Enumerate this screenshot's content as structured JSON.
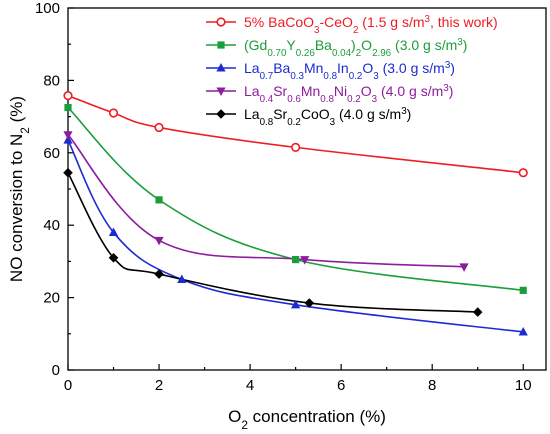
{
  "chart_data": {
    "type": "line",
    "xlabel": {
      "main": "O",
      "sub": "2",
      "rest": " concentration (%)"
    },
    "ylabel": {
      "main": "NO conversion to N",
      "sub": "2",
      "rest": " (%)"
    },
    "xlim": [
      0,
      10.5
    ],
    "ylim": [
      0,
      100
    ],
    "xticks": [
      "0",
      "2",
      "4",
      "6",
      "8",
      "10"
    ],
    "yticks": [
      "0",
      "20",
      "40",
      "60",
      "80",
      "100"
    ],
    "grid": false,
    "legend_position": "top-right",
    "series": [
      {
        "name": "5% BaCoO3-CeO2 (1.5 g s/m3, this work)",
        "legend": [
          [
            "5% BaCoO",
            "n"
          ],
          [
            "3",
            "sub"
          ],
          [
            "-CeO",
            "n"
          ],
          [
            "2",
            "sub"
          ],
          [
            " (1.5 g s/m",
            "n"
          ],
          [
            "3",
            "sup"
          ],
          [
            ", this work)",
            "n"
          ]
        ],
        "color": "#ee1c24",
        "marker": "circle-open",
        "x": [
          0,
          1,
          2,
          5,
          10
        ],
        "y": [
          75.8,
          71,
          67,
          61.5,
          54.5
        ]
      },
      {
        "name": "(Gd0.70Y0.26Ba0.04)2O2.96 (3.0 g s/m3)",
        "legend": [
          [
            "(Gd",
            "n"
          ],
          [
            "0.70",
            "sub"
          ],
          [
            "Y",
            "n"
          ],
          [
            "0.26",
            "sub"
          ],
          [
            "Ba",
            "n"
          ],
          [
            "0.04",
            "sub"
          ],
          [
            ")",
            "n"
          ],
          [
            "2",
            "sub"
          ],
          [
            "O",
            "n"
          ],
          [
            "2.96",
            "sub"
          ],
          [
            " (3.0 g s/m",
            "n"
          ],
          [
            "3",
            "sup"
          ],
          [
            ")",
            "n"
          ]
        ],
        "color": "#1b9e3a",
        "marker": "square",
        "x": [
          0,
          2,
          5,
          10
        ],
        "y": [
          72.5,
          47,
          30.5,
          22
        ]
      },
      {
        "name": "La0.7Ba0.3Mn0.8In0.2O3 (3.0 g s/m3)",
        "legend": [
          [
            "La",
            "n"
          ],
          [
            "0.7",
            "sub"
          ],
          [
            "Ba",
            "n"
          ],
          [
            "0.3",
            "sub"
          ],
          [
            "Mn",
            "n"
          ],
          [
            "0.8",
            "sub"
          ],
          [
            "In",
            "n"
          ],
          [
            "0.2",
            "sub"
          ],
          [
            "O",
            "n"
          ],
          [
            "3",
            "sub"
          ],
          [
            " (3.0 g s/m",
            "n"
          ],
          [
            "3",
            "sup"
          ],
          [
            ")",
            "n"
          ]
        ],
        "color": "#1c2bd1",
        "marker": "triangle-up",
        "x": [
          0,
          1,
          2.5,
          5,
          10
        ],
        "y": [
          63.5,
          38,
          25,
          18,
          10.5
        ]
      },
      {
        "name": "La0.4Sr0.6Mn0.8Ni0.2O3 (4.0 g s/m3)",
        "legend": [
          [
            "La",
            "n"
          ],
          [
            "0.4",
            "sub"
          ],
          [
            "Sr",
            "n"
          ],
          [
            "0.6",
            "sub"
          ],
          [
            "Mn",
            "n"
          ],
          [
            "0.8",
            "sub"
          ],
          [
            "Ni",
            "n"
          ],
          [
            "0.2",
            "sub"
          ],
          [
            "O",
            "n"
          ],
          [
            "3",
            "sub"
          ],
          [
            " (4.0 g s/m",
            "n"
          ],
          [
            "3",
            "sup"
          ],
          [
            ")",
            "n"
          ]
        ],
        "color": "#8e1c9e",
        "marker": "triangle-down",
        "x": [
          0,
          2,
          5.2,
          8.7
        ],
        "y": [
          65,
          35.8,
          30.5,
          28.5
        ]
      },
      {
        "name": "La0.8Sr0.2CoO3 (4.0 g s/m3)",
        "legend": [
          [
            "La",
            "n"
          ],
          [
            "0.8",
            "sub"
          ],
          [
            "Sr",
            "n"
          ],
          [
            "0.2",
            "sub"
          ],
          [
            "CoO",
            "n"
          ],
          [
            "3",
            "sub"
          ],
          [
            " (4.0 g s/m",
            "n"
          ],
          [
            "3",
            "sup"
          ],
          [
            ")",
            "n"
          ]
        ],
        "color": "#000000",
        "marker": "diamond",
        "x": [
          0,
          1,
          2,
          5.3,
          9
        ],
        "y": [
          54.5,
          31,
          26.5,
          18.5,
          16
        ]
      }
    ]
  }
}
